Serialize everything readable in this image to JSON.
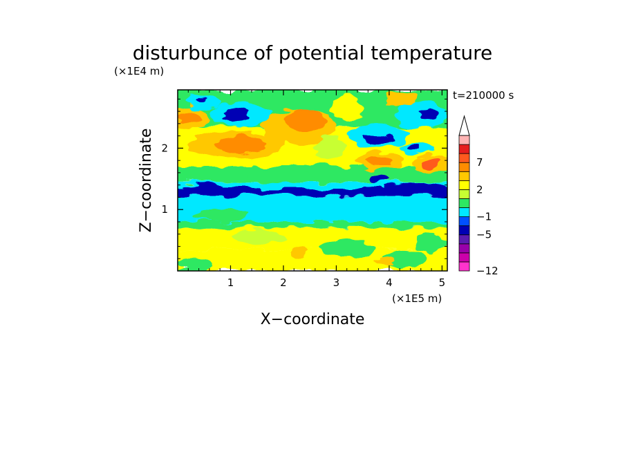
{
  "chart_data": {
    "type": "heatmap",
    "title": "disturbunce of potential temperature",
    "time_label": "t=210000 s",
    "xlabel": "X−coordinate",
    "ylabel": "Z−coordinate",
    "x_unit": "(×1E5 m)",
    "y_unit": "(×1E4 m)",
    "xlim": [
      0,
      5.1
    ],
    "ylim": [
      0,
      2.95
    ],
    "x_ticks": [
      1,
      2,
      3,
      4,
      5
    ],
    "x_tick_labels": [
      "1",
      "2",
      "3",
      "4",
      "5"
    ],
    "y_ticks": [
      1,
      2
    ],
    "y_tick_labels": [
      "1",
      "2"
    ],
    "colorbar": {
      "levels": [
        -12,
        -10,
        -8,
        -6,
        -5,
        -3,
        -1,
        0,
        1,
        2,
        3,
        5,
        7,
        8,
        9,
        10
      ],
      "colors": [
        "#ff33cc",
        "#cc00aa",
        "#9900aa",
        "#5a1bb0",
        "#0000b4",
        "#0050ff",
        "#00e8ff",
        "#2ee862",
        "#c8ff32",
        "#ffff00",
        "#ffc800",
        "#ff8c00",
        "#ff5a1e",
        "#e61e1e",
        "#ffb4b4"
      ],
      "labeled_values": [
        "−12",
        "−5",
        "−1",
        "2",
        "7"
      ],
      "extend": "max"
    },
    "field_description": "Potential temperature disturbance in x-z plane; blue/cyan negative band near z≈1.2–1.3, warm (orange/red) layers near z≈2–2.5, mixed yellow/green near surface.",
    "bands": [
      {
        "z": [
          0.0,
          0.35
        ],
        "dominant": "yellow"
      },
      {
        "z": [
          0.35,
          0.7
        ],
        "dominant": "yellow"
      },
      {
        "z": [
          0.7,
          0.8
        ],
        "dominant": "green"
      },
      {
        "z": [
          0.8,
          1.2
        ],
        "dominant": "cyan"
      },
      {
        "z": [
          1.2,
          1.35
        ],
        "dominant": "blue"
      },
      {
        "z": [
          1.35,
          1.7
        ],
        "dominant": "yellow-green"
      },
      {
        "z": [
          1.7,
          2.5
        ],
        "dominant": "yellow-orange"
      },
      {
        "z": [
          2.5,
          2.95
        ],
        "dominant": "green-cyan-blue"
      }
    ]
  }
}
